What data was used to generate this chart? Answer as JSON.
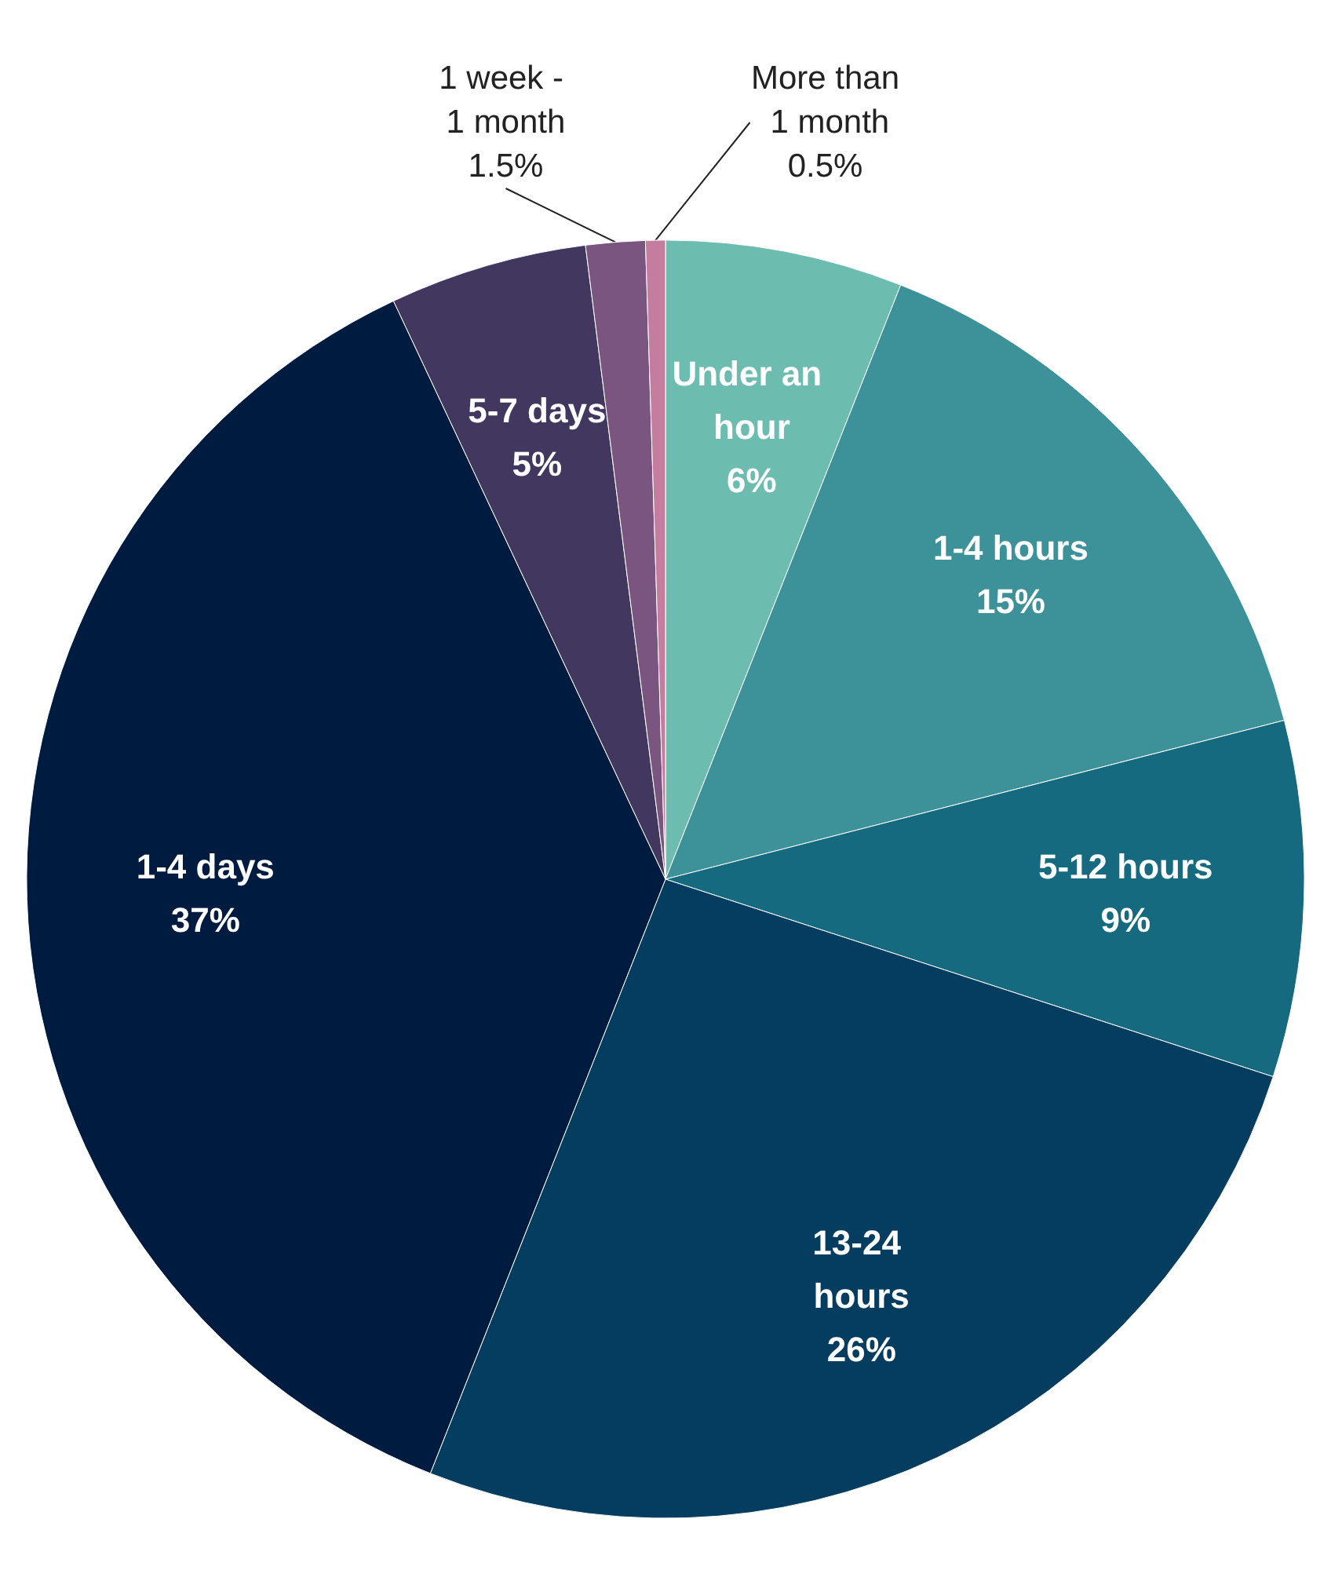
{
  "chart_data": {
    "type": "pie",
    "categories": [
      "Under an hour",
      "1-4 hours",
      "5-12 hours",
      "13-24 hours",
      "1-4 days",
      "5-7 days",
      "1 week - 1 month",
      "More than 1 month"
    ],
    "values": [
      6,
      15,
      9,
      26,
      37,
      5,
      1.5,
      0.5
    ],
    "colors": [
      "#6cbcb0",
      "#3d9199",
      "#156a80",
      "#043d5f",
      "#001b40",
      "#42375e",
      "#7a557f",
      "#c47c9f"
    ],
    "value_labels": [
      "6%",
      "15%",
      "9%",
      "26%",
      "37%",
      "5%",
      "1.5%",
      "0.5%"
    ],
    "legend": false
  }
}
